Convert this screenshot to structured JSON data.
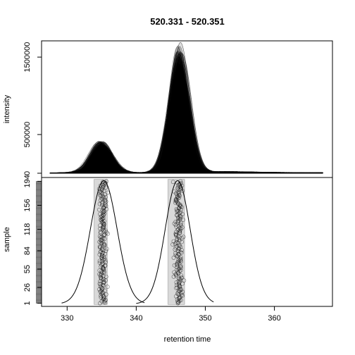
{
  "chart_data": {
    "type": "area",
    "title": "520.331 - 520.351",
    "xlabel": "retention time",
    "x_ticks": [
      "330",
      "340",
      "350",
      "360"
    ],
    "xlim": [
      326.3,
      368.4
    ],
    "grid": false,
    "panels": [
      {
        "name": "intensity-panel",
        "type": "area",
        "ylabel": "intensity",
        "y_ticks": [
          "0",
          "500000",
          "1500000"
        ],
        "ylim": [
          -55000,
          1710000
        ],
        "peaks": [
          {
            "rt": 335.0,
            "height": 330000,
            "width": 1.4
          },
          {
            "rt": 346.3,
            "height": 1500000,
            "width": 1.3
          }
        ],
        "max_intensity": 1690000,
        "baseline_range": [
          327.5,
          367.0
        ]
      },
      {
        "name": "sample-panel",
        "type": "scatter",
        "ylabel": "sample",
        "y_ticks": [
          "1",
          "26",
          "55",
          "84",
          "118",
          "156",
          "194"
        ],
        "ylim": [
          -4,
          200
        ],
        "sample_count": 194,
        "ranges": [
          {
            "rt_min": 333.9,
            "rt_max": 335.8
          },
          {
            "rt_min": 344.6,
            "rt_max": 347.0
          }
        ],
        "density_curves": [
          {
            "rt_min": 329.2,
            "rt_max": 341.2,
            "center": 335.3
          },
          {
            "rt_min": 340.0,
            "rt_max": 351.2,
            "center": 346.0
          }
        ]
      }
    ]
  }
}
